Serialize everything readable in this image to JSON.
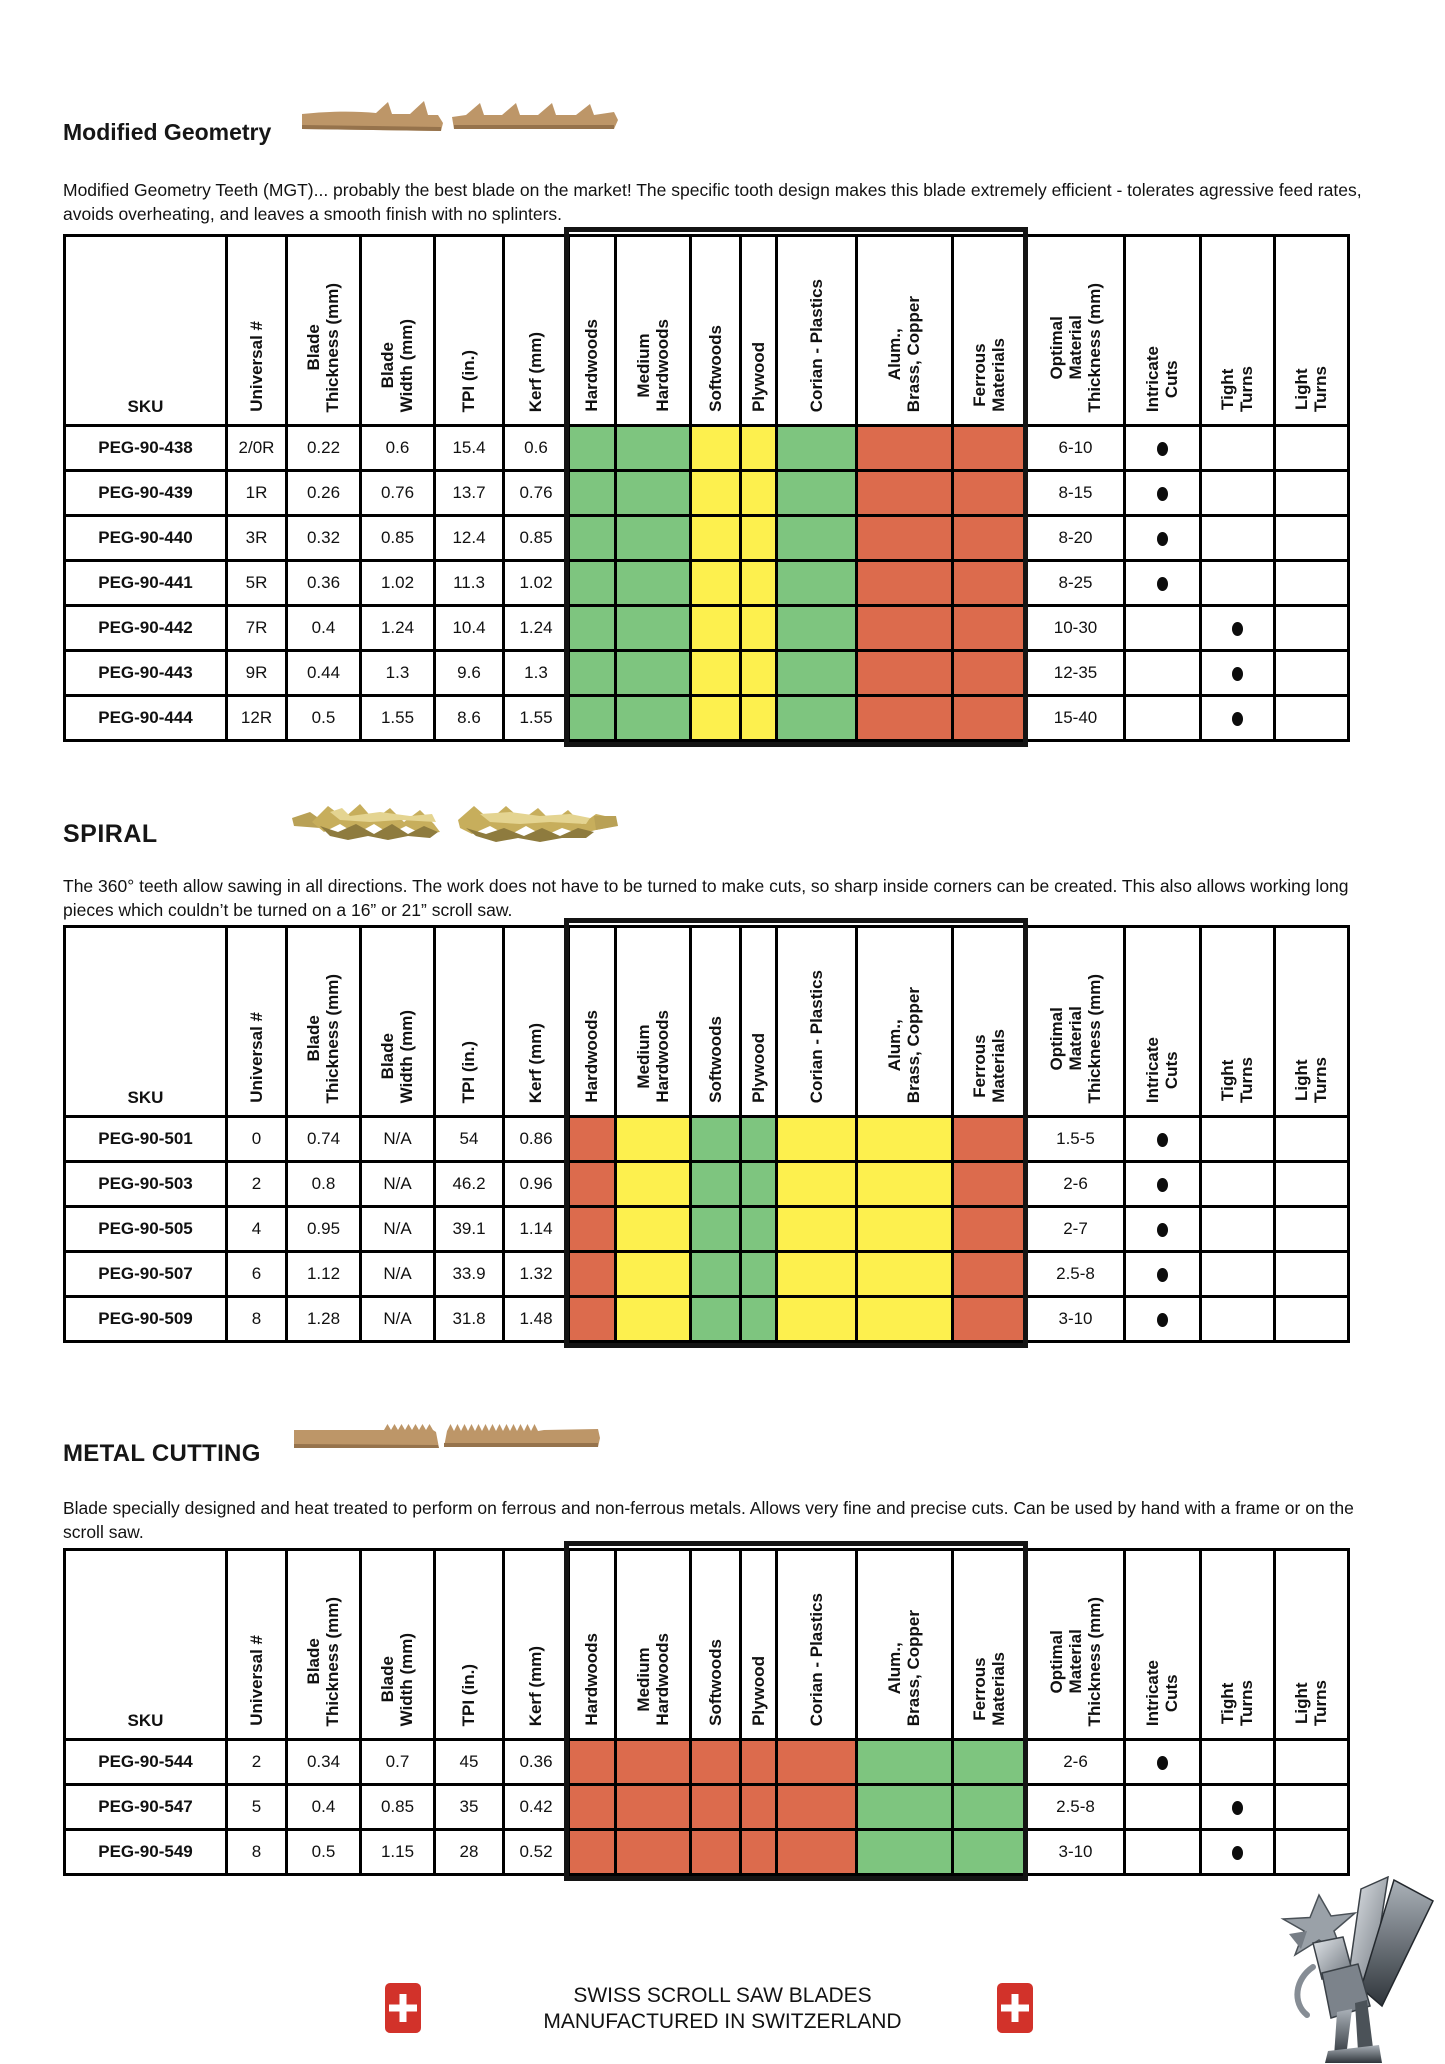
{
  "colors": {
    "green": "#7ec57f",
    "yellow": "#fdf04e",
    "red": "#dc6b4d",
    "blade_tan": "#bd9668",
    "flag_red": "#d2322a"
  },
  "column_headers": [
    "SKU",
    "Universal #",
    "Blade\nThickness (mm)",
    "Blade\nWidth (mm)",
    "TPI (in.)",
    "Kerf (mm)",
    "Hardwoods",
    "Medium\nHardwoods",
    "Softwoods",
    "Plywood",
    "Corian - Plastics",
    "Alum.,\nBrass, Copper",
    "Ferrous\nMaterials",
    "Optimal\nMaterial\nThickness (mm)",
    "Intricate\nCuts",
    "Tight\nTurns",
    "Light\nTurns"
  ],
  "sections": [
    {
      "id": "modified-geometry",
      "title": "Modified Geometry",
      "description": "Modified Geometry Teeth (MGT)... probably the best blade on the market! The specific tooth design makes this blade extremely efficient - tolerates agressive feed rates, avoids overheating, and leaves a smooth finish with no splinters.",
      "material_colors": [
        "green",
        "green",
        "yellow",
        "yellow",
        "green",
        "red",
        "red"
      ],
      "rows": [
        {
          "sku": "PEG-90-438",
          "universal": "2/0R",
          "blade_thickness": "0.22",
          "blade_width": "0.6",
          "tpi": "15.4",
          "kerf": "0.6",
          "optimal": "6-10",
          "intricate": true,
          "tight": false,
          "light": false
        },
        {
          "sku": "PEG-90-439",
          "universal": "1R",
          "blade_thickness": "0.26",
          "blade_width": "0.76",
          "tpi": "13.7",
          "kerf": "0.76",
          "optimal": "8-15",
          "intricate": true,
          "tight": false,
          "light": false
        },
        {
          "sku": "PEG-90-440",
          "universal": "3R",
          "blade_thickness": "0.32",
          "blade_width": "0.85",
          "tpi": "12.4",
          "kerf": "0.85",
          "optimal": "8-20",
          "intricate": true,
          "tight": false,
          "light": false
        },
        {
          "sku": "PEG-90-441",
          "universal": "5R",
          "blade_thickness": "0.36",
          "blade_width": "1.02",
          "tpi": "11.3",
          "kerf": "1.02",
          "optimal": "8-25",
          "intricate": true,
          "tight": false,
          "light": false
        },
        {
          "sku": "PEG-90-442",
          "universal": "7R",
          "blade_thickness": "0.4",
          "blade_width": "1.24",
          "tpi": "10.4",
          "kerf": "1.24",
          "optimal": "10-30",
          "intricate": false,
          "tight": true,
          "light": false
        },
        {
          "sku": "PEG-90-443",
          "universal": "9R",
          "blade_thickness": "0.44",
          "blade_width": "1.3",
          "tpi": "9.6",
          "kerf": "1.3",
          "optimal": "12-35",
          "intricate": false,
          "tight": true,
          "light": false
        },
        {
          "sku": "PEG-90-444",
          "universal": "12R",
          "blade_thickness": "0.5",
          "blade_width": "1.55",
          "tpi": "8.6",
          "kerf": "1.55",
          "optimal": "15-40",
          "intricate": false,
          "tight": true,
          "light": false
        }
      ]
    },
    {
      "id": "spiral",
      "title": "SPIRAL",
      "description": "The 360° teeth allow sawing in all directions. The work does not have to be turned to make cuts, so sharp inside corners can be created. This also allows working long pieces which couldn’t be turned on a 16” or 21” scroll saw.",
      "material_colors": [
        "red",
        "yellow",
        "green",
        "green",
        "yellow",
        "yellow",
        "red"
      ],
      "rows": [
        {
          "sku": "PEG-90-501",
          "universal": "0",
          "blade_thickness": "0.74",
          "blade_width": "N/A",
          "tpi": "54",
          "kerf": "0.86",
          "optimal": "1.5-5",
          "intricate": true,
          "tight": false,
          "light": false
        },
        {
          "sku": "PEG-90-503",
          "universal": "2",
          "blade_thickness": "0.8",
          "blade_width": "N/A",
          "tpi": "46.2",
          "kerf": "0.96",
          "optimal": "2-6",
          "intricate": true,
          "tight": false,
          "light": false
        },
        {
          "sku": "PEG-90-505",
          "universal": "4",
          "blade_thickness": "0.95",
          "blade_width": "N/A",
          "tpi": "39.1",
          "kerf": "1.14",
          "optimal": "2-7",
          "intricate": true,
          "tight": false,
          "light": false
        },
        {
          "sku": "PEG-90-507",
          "universal": "6",
          "blade_thickness": "1.12",
          "blade_width": "N/A",
          "tpi": "33.9",
          "kerf": "1.32",
          "optimal": "2.5-8",
          "intricate": true,
          "tight": false,
          "light": false
        },
        {
          "sku": "PEG-90-509",
          "universal": "8",
          "blade_thickness": "1.28",
          "blade_width": "N/A",
          "tpi": "31.8",
          "kerf": "1.48",
          "optimal": "3-10",
          "intricate": true,
          "tight": false,
          "light": false
        }
      ]
    },
    {
      "id": "metal-cutting",
      "title": "METAL CUTTING",
      "description": "Blade specially designed and heat treated to perform on ferrous and non-ferrous metals. Allows very fine and precise cuts. Can be used by hand with a frame or on the scroll saw.",
      "material_colors": [
        "red",
        "red",
        "red",
        "red",
        "red",
        "green",
        "green"
      ],
      "rows": [
        {
          "sku": "PEG-90-544",
          "universal": "2",
          "blade_thickness": "0.34",
          "blade_width": "0.7",
          "tpi": "45",
          "kerf": "0.36",
          "optimal": "2-6",
          "intricate": true,
          "tight": false,
          "light": false
        },
        {
          "sku": "PEG-90-547",
          "universal": "5",
          "blade_thickness": "0.4",
          "blade_width": "0.85",
          "tpi": "35",
          "kerf": "0.42",
          "optimal": "2.5-8",
          "intricate": false,
          "tight": true,
          "light": false
        },
        {
          "sku": "PEG-90-549",
          "universal": "8",
          "blade_thickness": "0.5",
          "blade_width": "1.15",
          "tpi": "28",
          "kerf": "0.52",
          "optimal": "3-10",
          "intricate": false,
          "tight": true,
          "light": false
        }
      ]
    }
  ],
  "footer": {
    "line1": "SWISS SCROLL SAW BLADES",
    "line2": "MANUFACTURED IN SWITZERLAND"
  }
}
